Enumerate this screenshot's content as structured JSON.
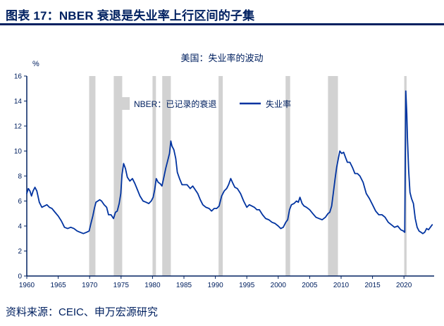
{
  "header": {
    "title": "图表 17：NBER 衰退是失业率上行区间的子集"
  },
  "footer": {
    "source": "资料来源：CEIC、申万宏源研究"
  },
  "colors": {
    "accent": "#002060",
    "line": "#0033a0",
    "band": "#d2d2d2",
    "axis": "#002060"
  },
  "chart_data": {
    "type": "line",
    "title": "美国：失业率的波动",
    "xlabel": "",
    "ylabel": "%",
    "ylim": [
      0,
      16
    ],
    "yticks": [
      0,
      2,
      4,
      6,
      8,
      10,
      12,
      14,
      16
    ],
    "xlim": [
      1960,
      2024.8
    ],
    "xticks": [
      1960,
      1965,
      1970,
      1975,
      1980,
      1985,
      1990,
      1995,
      2000,
      2005,
      2010,
      2015,
      2020
    ],
    "grid": false,
    "legend_position": "top-inside",
    "legend": [
      {
        "label": "NBER：已记录的衰退",
        "swatch": "band"
      },
      {
        "label": "失业率",
        "swatch": "line"
      }
    ],
    "recession_bands": [
      [
        1969.92,
        1970.92
      ],
      [
        1973.83,
        1975.17
      ],
      [
        1980.0,
        1980.55
      ],
      [
        1981.55,
        1982.92
      ],
      [
        1990.5,
        1991.17
      ],
      [
        2001.17,
        2001.9
      ],
      [
        2007.92,
        2009.5
      ],
      [
        2020.05,
        2020.42
      ]
    ],
    "series": [
      {
        "name": "失业率",
        "points": [
          [
            1960.0,
            6.6
          ],
          [
            1960.25,
            7.0
          ],
          [
            1960.5,
            6.8
          ],
          [
            1960.75,
            6.4
          ],
          [
            1961.0,
            6.8
          ],
          [
            1961.3,
            7.1
          ],
          [
            1961.6,
            6.8
          ],
          [
            1962.0,
            5.9
          ],
          [
            1962.4,
            5.5
          ],
          [
            1962.8,
            5.6
          ],
          [
            1963.2,
            5.7
          ],
          [
            1963.6,
            5.5
          ],
          [
            1964.0,
            5.4
          ],
          [
            1964.5,
            5.1
          ],
          [
            1965.0,
            4.8
          ],
          [
            1965.5,
            4.4
          ],
          [
            1966.0,
            3.9
          ],
          [
            1966.5,
            3.8
          ],
          [
            1967.0,
            3.9
          ],
          [
            1967.5,
            3.8
          ],
          [
            1968.0,
            3.6
          ],
          [
            1968.5,
            3.5
          ],
          [
            1969.0,
            3.4
          ],
          [
            1969.5,
            3.5
          ],
          [
            1969.92,
            3.6
          ],
          [
            1970.2,
            4.2
          ],
          [
            1970.5,
            4.8
          ],
          [
            1970.75,
            5.4
          ],
          [
            1971.0,
            5.9
          ],
          [
            1971.3,
            6.0
          ],
          [
            1971.6,
            6.1
          ],
          [
            1971.9,
            6.0
          ],
          [
            1972.3,
            5.7
          ],
          [
            1972.7,
            5.5
          ],
          [
            1973.0,
            4.9
          ],
          [
            1973.4,
            4.9
          ],
          [
            1973.8,
            4.6
          ],
          [
            1974.1,
            5.1
          ],
          [
            1974.4,
            5.2
          ],
          [
            1974.7,
            5.8
          ],
          [
            1974.95,
            6.6
          ],
          [
            1975.15,
            8.1
          ],
          [
            1975.4,
            9.0
          ],
          [
            1975.7,
            8.6
          ],
          [
            1976.0,
            7.9
          ],
          [
            1976.4,
            7.6
          ],
          [
            1976.8,
            7.8
          ],
          [
            1977.2,
            7.4
          ],
          [
            1977.6,
            6.9
          ],
          [
            1978.0,
            6.4
          ],
          [
            1978.5,
            6.0
          ],
          [
            1979.0,
            5.9
          ],
          [
            1979.4,
            5.8
          ],
          [
            1979.8,
            6.0
          ],
          [
            1980.1,
            6.3
          ],
          [
            1980.35,
            6.9
          ],
          [
            1980.6,
            7.8
          ],
          [
            1980.9,
            7.5
          ],
          [
            1981.2,
            7.4
          ],
          [
            1981.5,
            7.2
          ],
          [
            1981.8,
            7.9
          ],
          [
            1982.1,
            8.6
          ],
          [
            1982.4,
            9.2
          ],
          [
            1982.7,
            9.8
          ],
          [
            1982.92,
            10.8
          ],
          [
            1983.1,
            10.4
          ],
          [
            1983.4,
            10.1
          ],
          [
            1983.7,
            9.4
          ],
          [
            1983.95,
            8.3
          ],
          [
            1984.3,
            7.8
          ],
          [
            1984.7,
            7.3
          ],
          [
            1985.1,
            7.3
          ],
          [
            1985.5,
            7.3
          ],
          [
            1986.0,
            7.0
          ],
          [
            1986.4,
            7.2
          ],
          [
            1986.8,
            6.9
          ],
          [
            1987.2,
            6.6
          ],
          [
            1987.6,
            6.1
          ],
          [
            1988.0,
            5.7
          ],
          [
            1988.5,
            5.5
          ],
          [
            1989.0,
            5.4
          ],
          [
            1989.4,
            5.2
          ],
          [
            1989.8,
            5.4
          ],
          [
            1990.2,
            5.4
          ],
          [
            1990.6,
            5.6
          ],
          [
            1991.0,
            6.4
          ],
          [
            1991.4,
            6.8
          ],
          [
            1991.8,
            7.0
          ],
          [
            1992.1,
            7.3
          ],
          [
            1992.45,
            7.8
          ],
          [
            1992.8,
            7.4
          ],
          [
            1993.1,
            7.1
          ],
          [
            1993.5,
            7.0
          ],
          [
            1994.0,
            6.6
          ],
          [
            1994.5,
            6.0
          ],
          [
            1995.0,
            5.5
          ],
          [
            1995.4,
            5.7
          ],
          [
            1995.8,
            5.6
          ],
          [
            1996.2,
            5.5
          ],
          [
            1996.6,
            5.3
          ],
          [
            1997.0,
            5.3
          ],
          [
            1997.5,
            4.9
          ],
          [
            1998.0,
            4.6
          ],
          [
            1998.5,
            4.5
          ],
          [
            1999.0,
            4.3
          ],
          [
            1999.5,
            4.2
          ],
          [
            2000.0,
            4.0
          ],
          [
            2000.4,
            3.8
          ],
          [
            2000.8,
            3.9
          ],
          [
            2001.2,
            4.3
          ],
          [
            2001.5,
            4.5
          ],
          [
            2001.8,
            5.3
          ],
          [
            2002.1,
            5.7
          ],
          [
            2002.5,
            5.8
          ],
          [
            2002.9,
            6.0
          ],
          [
            2003.2,
            5.9
          ],
          [
            2003.45,
            6.3
          ],
          [
            2003.8,
            5.8
          ],
          [
            2004.1,
            5.6
          ],
          [
            2004.5,
            5.5
          ],
          [
            2005.0,
            5.3
          ],
          [
            2005.5,
            5.0
          ],
          [
            2006.0,
            4.7
          ],
          [
            2006.5,
            4.6
          ],
          [
            2007.0,
            4.5
          ],
          [
            2007.5,
            4.7
          ],
          [
            2007.92,
            5.0
          ],
          [
            2008.2,
            5.1
          ],
          [
            2008.5,
            5.6
          ],
          [
            2008.8,
            6.8
          ],
          [
            2009.05,
            7.8
          ],
          [
            2009.3,
            8.7
          ],
          [
            2009.6,
            9.5
          ],
          [
            2009.8,
            10.0
          ],
          [
            2010.1,
            9.8
          ],
          [
            2010.4,
            9.9
          ],
          [
            2010.7,
            9.5
          ],
          [
            2011.0,
            9.1
          ],
          [
            2011.4,
            9.1
          ],
          [
            2011.8,
            8.7
          ],
          [
            2012.2,
            8.2
          ],
          [
            2012.6,
            8.2
          ],
          [
            2013.0,
            8.0
          ],
          [
            2013.5,
            7.5
          ],
          [
            2014.0,
            6.6
          ],
          [
            2014.5,
            6.2
          ],
          [
            2015.0,
            5.7
          ],
          [
            2015.5,
            5.2
          ],
          [
            2016.0,
            4.9
          ],
          [
            2016.5,
            4.9
          ],
          [
            2017.0,
            4.7
          ],
          [
            2017.5,
            4.3
          ],
          [
            2018.0,
            4.1
          ],
          [
            2018.5,
            3.9
          ],
          [
            2019.0,
            4.0
          ],
          [
            2019.5,
            3.7
          ],
          [
            2019.9,
            3.6
          ],
          [
            2020.12,
            3.5
          ],
          [
            2020.29,
            14.8
          ],
          [
            2020.45,
            13.0
          ],
          [
            2020.55,
            11.1
          ],
          [
            2020.75,
            8.4
          ],
          [
            2020.95,
            6.7
          ],
          [
            2021.2,
            6.2
          ],
          [
            2021.5,
            5.8
          ],
          [
            2021.8,
            4.6
          ],
          [
            2022.1,
            3.9
          ],
          [
            2022.4,
            3.6
          ],
          [
            2022.7,
            3.5
          ],
          [
            2023.0,
            3.4
          ],
          [
            2023.3,
            3.5
          ],
          [
            2023.6,
            3.8
          ],
          [
            2023.9,
            3.7
          ],
          [
            2024.2,
            3.9
          ],
          [
            2024.5,
            4.1
          ]
        ]
      }
    ]
  }
}
